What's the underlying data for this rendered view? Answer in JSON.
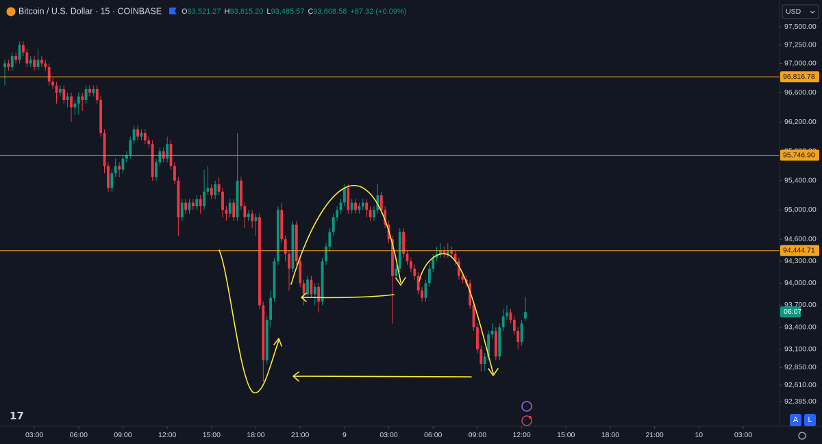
{
  "chart_data": {
    "type": "candlestick",
    "title": "Bitcoin / U.S. Dollar · 15 · COINBASE",
    "legend_values": [
      {
        "key": "O",
        "value": "93,521.27"
      },
      {
        "key": "H",
        "value": "93,815.20"
      },
      {
        "key": "L",
        "value": "93,485.57"
      },
      {
        "key": "C",
        "value": "93,608.58"
      },
      {
        "key": "",
        "value": "+87.32 (+0.09%)"
      }
    ],
    "currency": "USD",
    "countdown": "06:07",
    "buttons": [
      "A",
      "L"
    ],
    "up_color": "#089981",
    "down_color": "#f23645",
    "grid": false,
    "ylim": [
      92068,
      97865
    ],
    "yticks": [
      {
        "value": 97500,
        "label": "97,500.00"
      },
      {
        "value": 97250,
        "label": "97,250.00"
      },
      {
        "value": 97000,
        "label": "97,000.00"
      },
      {
        "value": 96600,
        "label": "96,600.00"
      },
      {
        "value": 96200,
        "label": "96,200.00"
      },
      {
        "value": 95800,
        "label": "95,800.00"
      },
      {
        "value": 95400,
        "label": "95,400.00"
      },
      {
        "value": 95000,
        "label": "95,000.00"
      },
      {
        "value": 94600,
        "label": "94,600.00"
      },
      {
        "value": 94300,
        "label": "94,300.00"
      },
      {
        "value": 94000,
        "label": "94,000.00"
      },
      {
        "value": 93700,
        "label": "93,700.00"
      },
      {
        "value": 93400,
        "label": "93,400.00"
      },
      {
        "value": 93100,
        "label": "93,100.00"
      },
      {
        "value": 92850,
        "label": "92,850.00"
      },
      {
        "value": 92610,
        "label": "92,610.00"
      },
      {
        "value": 92385,
        "label": "92,385.00"
      }
    ],
    "xticks": [
      "03:00",
      "06:00",
      "09:00",
      "12:00",
      "15:00",
      "18:00",
      "21:00",
      "9",
      "03:00",
      "06:00",
      "09:00",
      "12:00",
      "15:00",
      "18:00",
      "21:00",
      "10",
      "03:00"
    ],
    "hlines": [
      {
        "value": 96816.78,
        "label": "96,816.78",
        "color": "#f7a21b"
      },
      {
        "value": 95746.9,
        "label": "95,746.90",
        "color": "#f7a21b"
      },
      {
        "value": 94444.71,
        "label": "94,444.71",
        "color": "#f7a21b"
      }
    ],
    "open": [
      96950,
      97000,
      96950,
      97100,
      97050,
      97250,
      97150,
      97000,
      97050,
      96950,
      97050,
      97000,
      96950,
      96750,
      96700,
      96600,
      96650,
      96500,
      96550,
      96400,
      96450,
      96550,
      96500,
      96650,
      96600,
      96650,
      96500,
      96050,
      95600,
      95300,
      95500,
      95600,
      95550,
      95700,
      95750,
      95950,
      96100,
      96000,
      96050,
      95950,
      95900,
      95450,
      95650,
      95800,
      95700,
      95900,
      95600,
      95400,
      94900,
      95100,
      95000,
      95100,
      95050,
      95150,
      95050,
      95250,
      95300,
      95200,
      95350,
      95250,
      95000,
      94950,
      95100,
      94900,
      95400,
      95050,
      94900,
      94950,
      94850,
      94900,
      93700,
      92950,
      93500,
      93800,
      94300,
      95000,
      94600,
      94400,
      94200,
      94800,
      94300,
      94000,
      93850,
      94050,
      93850,
      93950,
      93750,
      94300,
      94500,
      94700,
      94900,
      95000,
      95100,
      95300,
      95000,
      95100,
      95000,
      95050,
      95100,
      95000,
      94900,
      95000,
      95200,
      95000,
      94800,
      94600,
      94100,
      94200,
      94700,
      94400,
      94300,
      94200,
      94100,
      93900,
      93800,
      94000,
      94200,
      94350,
      94400,
      94450,
      94400,
      94450,
      94400,
      94300,
      94100,
      94050,
      94000,
      93700,
      93400,
      93100,
      92900,
      93000,
      93300,
      93350,
      93000,
      93400,
      93550,
      93600,
      93500,
      93350,
      93200,
      93521.27
    ],
    "high": [
      97050,
      97050,
      97150,
      97150,
      97300,
      97300,
      97200,
      97100,
      97100,
      97200,
      97100,
      97050,
      97000,
      96800,
      96750,
      96700,
      96700,
      96600,
      96600,
      96500,
      96600,
      96600,
      96700,
      96700,
      96700,
      96700,
      96550,
      96100,
      95650,
      95550,
      95700,
      95650,
      95750,
      95800,
      96000,
      96150,
      96150,
      96100,
      96100,
      96000,
      95950,
      95700,
      95850,
      95850,
      96000,
      95950,
      95650,
      95450,
      95150,
      95150,
      95150,
      95150,
      95200,
      95200,
      95550,
      95600,
      95350,
      95400,
      95450,
      95300,
      95050,
      95150,
      95150,
      96050,
      95450,
      95100,
      95000,
      95000,
      94950,
      94950,
      93750,
      93550,
      93900,
      94350,
      95050,
      95100,
      94650,
      94450,
      94850,
      94850,
      94350,
      94050,
      94100,
      94100,
      94000,
      94000,
      94350,
      94550,
      94750,
      94950,
      95050,
      95150,
      95350,
      95350,
      95150,
      95150,
      95100,
      95150,
      95150,
      95050,
      95050,
      95350,
      95250,
      95050,
      94850,
      94650,
      94250,
      94750,
      94750,
      94450,
      94350,
      94250,
      94150,
      93950,
      94050,
      94250,
      94400,
      94500,
      94550,
      94500,
      94550,
      94500,
      94450,
      94350,
      94150,
      94100,
      94050,
      93750,
      93450,
      93150,
      93050,
      93350,
      93450,
      93400,
      93450,
      93650,
      93700,
      93650,
      93550,
      93400,
      93500,
      93815.2
    ],
    "low": [
      96700,
      96900,
      96900,
      97000,
      97000,
      97100,
      96950,
      96950,
      96900,
      96900,
      96950,
      96900,
      96700,
      96650,
      96450,
      96550,
      96450,
      96400,
      96200,
      96300,
      96300,
      96350,
      96450,
      96550,
      96550,
      96450,
      96000,
      95500,
      95250,
      95250,
      95450,
      95450,
      95500,
      95650,
      95700,
      95900,
      95950,
      95950,
      95900,
      95850,
      95400,
      95400,
      95600,
      95650,
      95650,
      95550,
      95350,
      94650,
      94850,
      94950,
      94950,
      95000,
      95000,
      94950,
      95000,
      95200,
      95150,
      95150,
      95200,
      94900,
      94850,
      94900,
      94850,
      94850,
      95000,
      94750,
      94850,
      94750,
      94650,
      93650,
      92650,
      92900,
      93400,
      93750,
      94250,
      94550,
      94300,
      93900,
      94150,
      94250,
      93950,
      93700,
      93800,
      93800,
      93700,
      93600,
      93700,
      94250,
      94450,
      94650,
      94850,
      94950,
      95050,
      94950,
      94950,
      94950,
      94950,
      95000,
      94900,
      94850,
      94850,
      94950,
      94950,
      94750,
      94550,
      93450,
      94050,
      94150,
      94350,
      94250,
      94150,
      94050,
      93850,
      93750,
      93750,
      93950,
      94150,
      94300,
      94350,
      94350,
      94350,
      94350,
      94250,
      94050,
      94000,
      93950,
      93650,
      93350,
      93050,
      92800,
      92800,
      92950,
      93250,
      92950,
      92950,
      93350,
      93500,
      93450,
      93300,
      93100,
      93150,
      93485.57
    ],
    "close": [
      97000,
      96950,
      97100,
      97050,
      97250,
      97150,
      97000,
      97050,
      96950,
      97050,
      97000,
      96950,
      96750,
      96700,
      96600,
      96650,
      96500,
      96550,
      96400,
      96450,
      96550,
      96500,
      96650,
      96600,
      96650,
      96500,
      96050,
      95600,
      95300,
      95500,
      95600,
      95550,
      95700,
      95750,
      95950,
      96100,
      96000,
      96050,
      95950,
      95900,
      95450,
      95650,
      95800,
      95700,
      95900,
      95600,
      95400,
      94900,
      95100,
      95000,
      95100,
      95050,
      95150,
      95050,
      95250,
      95300,
      95200,
      95350,
      95250,
      95000,
      94950,
      95100,
      94900,
      95400,
      95050,
      94900,
      94950,
      94850,
      94900,
      93700,
      92950,
      93500,
      93800,
      94300,
      95000,
      94600,
      94400,
      94200,
      94800,
      94300,
      94000,
      93850,
      94050,
      93850,
      93950,
      93750,
      94300,
      94500,
      94700,
      94900,
      95000,
      95100,
      95300,
      95000,
      95100,
      95000,
      95050,
      95100,
      95000,
      94900,
      95000,
      95200,
      95000,
      94800,
      94600,
      94100,
      94200,
      94700,
      94400,
      94300,
      94200,
      94100,
      93900,
      93800,
      94000,
      94200,
      94350,
      94400,
      94450,
      94400,
      94450,
      94400,
      94300,
      94100,
      94050,
      94000,
      93700,
      93400,
      93100,
      92900,
      93000,
      93300,
      93350,
      93000,
      93400,
      93550,
      93600,
      93500,
      93350,
      93200,
      93450,
      93608.58
    ]
  }
}
